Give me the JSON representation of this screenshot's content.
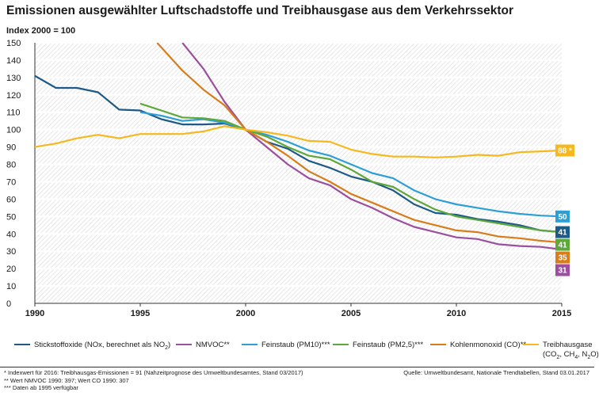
{
  "title": "Emissionen ausgewählter Luftschadstoffe und Treibhausgase aus dem Verkehrssektor",
  "chart_data": {
    "type": "line",
    "ylabel": "Index 2000 = 100",
    "ylim": [
      0,
      150
    ],
    "y_ticks": [
      0,
      10,
      20,
      30,
      40,
      50,
      60,
      70,
      80,
      90,
      100,
      110,
      120,
      130,
      140,
      150
    ],
    "xlim": [
      1990,
      2015
    ],
    "x_ticks": [
      1990,
      1995,
      2000,
      2005,
      2010,
      2015
    ],
    "grid": true,
    "legend_position": "bottom",
    "series": [
      {
        "name": "Stickstoffoxide (NOx, berechnet als NO2)",
        "color": "#1d5a87",
        "end_label": "41",
        "points": [
          [
            1990,
            131
          ],
          [
            1991,
            124
          ],
          [
            1992,
            124
          ],
          [
            1993,
            121.5
          ],
          [
            1994,
            111.5
          ],
          [
            1995,
            111
          ],
          [
            1996,
            106
          ],
          [
            1997,
            103
          ],
          [
            1998,
            103
          ],
          [
            1999,
            103.5
          ],
          [
            2000,
            100
          ],
          [
            2001,
            93
          ],
          [
            2002,
            89
          ],
          [
            2003,
            82
          ],
          [
            2004,
            78
          ],
          [
            2005,
            73
          ],
          [
            2006,
            70
          ],
          [
            2007,
            65
          ],
          [
            2008,
            57
          ],
          [
            2009,
            52
          ],
          [
            2010,
            51
          ],
          [
            2011,
            48.5
          ],
          [
            2012,
            47
          ],
          [
            2013,
            45
          ],
          [
            2014,
            42
          ],
          [
            2015,
            41
          ]
        ]
      },
      {
        "name": "NMVOC**",
        "color": "#9b4f9e",
        "end_label": "31",
        "points": [
          [
            1997,
            150
          ],
          [
            1998,
            135
          ],
          [
            1999,
            116
          ],
          [
            2000,
            100
          ],
          [
            2001,
            90
          ],
          [
            2002,
            80
          ],
          [
            2003,
            72
          ],
          [
            2004,
            68
          ],
          [
            2005,
            60
          ],
          [
            2006,
            55
          ],
          [
            2007,
            49
          ],
          [
            2008,
            44
          ],
          [
            2009,
            41
          ],
          [
            2010,
            38
          ],
          [
            2011,
            37
          ],
          [
            2012,
            34
          ],
          [
            2013,
            33
          ],
          [
            2014,
            32.5
          ],
          [
            2015,
            31
          ]
        ]
      },
      {
        "name": "Feinstaub (PM10)***",
        "color": "#2b9fd6",
        "end_label": "50",
        "points": [
          [
            1995,
            110
          ],
          [
            1996,
            108
          ],
          [
            1997,
            105
          ],
          [
            1998,
            106
          ],
          [
            1999,
            104
          ],
          [
            2000,
            100
          ],
          [
            2001,
            97
          ],
          [
            2002,
            93
          ],
          [
            2003,
            88
          ],
          [
            2004,
            85
          ],
          [
            2005,
            80
          ],
          [
            2006,
            75
          ],
          [
            2007,
            72
          ],
          [
            2008,
            65
          ],
          [
            2009,
            60
          ],
          [
            2010,
            57
          ],
          [
            2011,
            55
          ],
          [
            2012,
            53
          ],
          [
            2013,
            51.5
          ],
          [
            2014,
            50.5
          ],
          [
            2015,
            50
          ]
        ]
      },
      {
        "name": "Feinstaub (PM2,5)***",
        "color": "#5ea83b",
        "end_label": "41",
        "points": [
          [
            1995,
            115
          ],
          [
            1996,
            111
          ],
          [
            1997,
            107
          ],
          [
            1998,
            106.5
          ],
          [
            1999,
            105
          ],
          [
            2000,
            100
          ],
          [
            2001,
            96
          ],
          [
            2002,
            90
          ],
          [
            2003,
            85
          ],
          [
            2004,
            83
          ],
          [
            2005,
            77
          ],
          [
            2006,
            70
          ],
          [
            2007,
            67
          ],
          [
            2008,
            60
          ],
          [
            2009,
            54
          ],
          [
            2010,
            50
          ],
          [
            2011,
            48
          ],
          [
            2012,
            46
          ],
          [
            2013,
            44
          ],
          [
            2014,
            42
          ],
          [
            2015,
            41
          ]
        ]
      },
      {
        "name": "Kohlenmonoxid (CO)**",
        "color": "#d97c1a",
        "end_label": "35",
        "points": [
          [
            1995.8,
            150
          ],
          [
            1997,
            134
          ],
          [
            1998,
            123
          ],
          [
            1999,
            114
          ],
          [
            2000,
            100
          ],
          [
            2001,
            93
          ],
          [
            2002,
            85
          ],
          [
            2003,
            76
          ],
          [
            2004,
            70
          ],
          [
            2005,
            63
          ],
          [
            2006,
            58
          ],
          [
            2007,
            53
          ],
          [
            2008,
            48
          ],
          [
            2009,
            45
          ],
          [
            2010,
            42
          ],
          [
            2011,
            41
          ],
          [
            2012,
            38.5
          ],
          [
            2013,
            37.5
          ],
          [
            2014,
            36
          ],
          [
            2015,
            35
          ]
        ]
      },
      {
        "name": "Treibhausgase (CO2, CH4, N2O)",
        "color": "#f6b81e",
        "end_label": "88 *",
        "points": [
          [
            1990,
            90
          ],
          [
            1991,
            92
          ],
          [
            1992,
            95
          ],
          [
            1993,
            97
          ],
          [
            1994,
            95
          ],
          [
            1995,
            97.5
          ],
          [
            1996,
            97.5
          ],
          [
            1997,
            97.5
          ],
          [
            1998,
            99
          ],
          [
            1999,
            102
          ],
          [
            2000,
            100
          ],
          [
            2001,
            98.5
          ],
          [
            2002,
            96.5
          ],
          [
            2003,
            93.5
          ],
          [
            2004,
            93
          ],
          [
            2005,
            88.5
          ],
          [
            2006,
            86
          ],
          [
            2007,
            84.5
          ],
          [
            2008,
            84.5
          ],
          [
            2009,
            84
          ],
          [
            2010,
            84.5
          ],
          [
            2011,
            85.5
          ],
          [
            2012,
            85
          ],
          [
            2013,
            87
          ],
          [
            2014,
            87.5
          ],
          [
            2015,
            88
          ]
        ]
      }
    ]
  },
  "legend": {
    "nox": {
      "text": "Stickstoffoxide (NOx, berechnet als NO",
      "sub": "2",
      "close": ")"
    },
    "nmvoc": {
      "text": "NMVOC**"
    },
    "pm10": {
      "text": "Feinstaub (PM10)***"
    },
    "pm25": {
      "text": "Feinstaub (PM2,5)***"
    },
    "co": {
      "text": "Kohlenmonoxid (CO)**"
    },
    "ghg": {
      "line1": "Treibhausgase",
      "open": "(CO",
      "sub1": "2",
      "mid1": ", CH",
      "sub2": "4",
      "mid2": ", N",
      "sub3": "2",
      "close": "O)"
    }
  },
  "footnotes": {
    "line1": "* Indexwert für 2016: Treibhausgas-Emissionen = 91 (Nahzeitprognose des Umweltbundesamtes, Stand 03/2017)",
    "line2": "** Wert NMVOC 1990: 397; Wert CO 1990: 307",
    "line3": "*** Daten ab 1995 verfügbar"
  },
  "source": "Quelle: Umweltbundesamt, Nationale Trendtabellen, Stand 03.01.2017"
}
